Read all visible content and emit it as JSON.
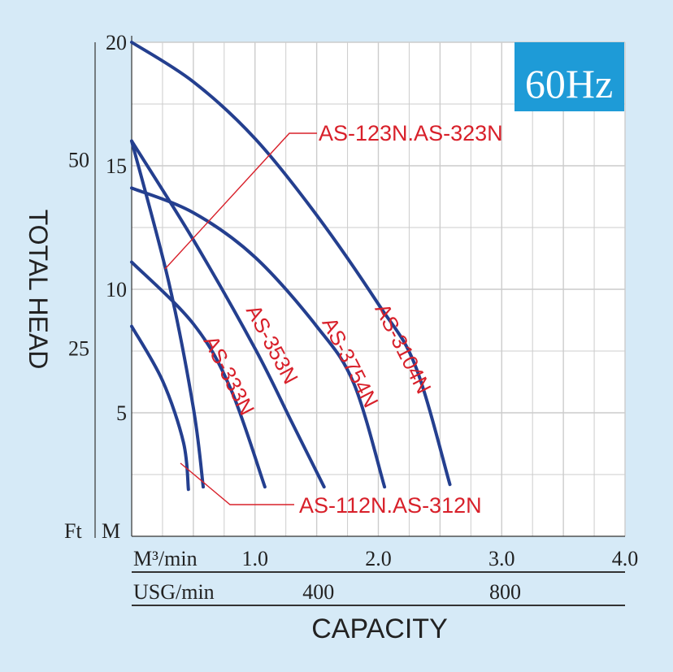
{
  "chart_data": {
    "type": "line",
    "title": "",
    "badge": "60Hz",
    "ylabel": "TOTAL HEAD",
    "xlabel": "CAPACITY",
    "xlim": [
      0,
      4
    ],
    "ylim": [
      0,
      20
    ],
    "x_unit_primary": "M³/min",
    "x_unit_secondary": "USG/min",
    "y_unit_primary": "M",
    "y_unit_secondary": "Ft",
    "x_ticks": [
      {
        "v": 1,
        "label": "1.0"
      },
      {
        "v": 2,
        "label": "2.0"
      },
      {
        "v": 3,
        "label": "3.0"
      },
      {
        "v": 4,
        "label": "4.0"
      }
    ],
    "usg_ticks": [
      {
        "v": 1.514,
        "label": "400"
      },
      {
        "v": 3.028,
        "label": "800"
      }
    ],
    "y_ticks": [
      {
        "v": 5,
        "label": "5"
      },
      {
        "v": 10,
        "label": "10"
      },
      {
        "v": 15,
        "label": "15"
      },
      {
        "v": 20,
        "label": "20"
      }
    ],
    "ft_ticks": [
      {
        "v": 7.62,
        "label": "25"
      },
      {
        "v": 15.24,
        "label": "50"
      }
    ],
    "colors": {
      "curve": "#243f8f",
      "label": "#d8202a",
      "badge_bg": "#1e9bd7",
      "badge_text": "#ffffff",
      "grid": "#cccccc",
      "plot_bg": "#ffffff"
    },
    "series": [
      {
        "name": "AS-3104N",
        "points": [
          [
            0,
            20
          ],
          [
            0.5,
            18.4
          ],
          [
            1,
            16.1
          ],
          [
            1.5,
            13
          ],
          [
            2,
            9.4
          ],
          [
            2.3,
            6.9
          ],
          [
            2.58,
            2.1
          ]
        ]
      },
      {
        "name": "AS-3754N",
        "points": [
          [
            0,
            14.1
          ],
          [
            0.5,
            13.1
          ],
          [
            1,
            11.3
          ],
          [
            1.5,
            8.5
          ],
          [
            1.8,
            6.2
          ],
          [
            2.05,
            2
          ]
        ]
      },
      {
        "name": "AS-353N",
        "points": [
          [
            0,
            16
          ],
          [
            0.5,
            12
          ],
          [
            1,
            7.6
          ],
          [
            1.3,
            4.6
          ],
          [
            1.56,
            2
          ]
        ]
      },
      {
        "name": "AS-333N",
        "points": [
          [
            0,
            11.1
          ],
          [
            0.5,
            8.6
          ],
          [
            0.8,
            6
          ],
          [
            1.08,
            2
          ]
        ]
      },
      {
        "name": "AS-112N.AS-312N",
        "points": [
          [
            0,
            16
          ],
          [
            0.3,
            10.3
          ],
          [
            0.5,
            5.2
          ],
          [
            0.58,
            2
          ]
        ]
      },
      {
        "name": "AS-112N.AS-312N",
        "points": [
          [
            0,
            8.5
          ],
          [
            0.25,
            6.3
          ],
          [
            0.42,
            3.8
          ],
          [
            0.46,
            1.9
          ]
        ]
      }
    ],
    "curve_labels": [
      {
        "text": "AS-3104N"
      },
      {
        "text": "AS-3754N"
      },
      {
        "text": "AS-353N"
      },
      {
        "text": "AS-333N"
      }
    ],
    "callouts": [
      {
        "text": "AS-123N.AS-323N"
      },
      {
        "text": "AS-112N.AS-312N"
      }
    ]
  }
}
